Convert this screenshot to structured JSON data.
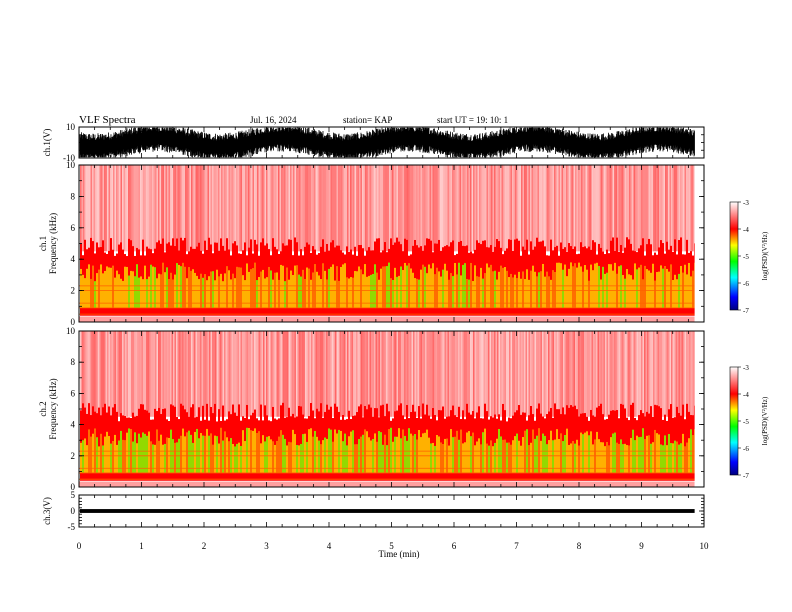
{
  "header": {
    "title": "VLF Spectra",
    "date": "Jul. 16, 2024",
    "station": "station= KAP",
    "start": "start UT =  19: 10: 1"
  },
  "colorbar": {
    "label": "log(PSD)(V²/Hz)",
    "ticks": [
      "-3",
      "-4",
      "-5",
      "-6",
      "-7"
    ],
    "colors": [
      "#000080",
      "#0000ff",
      "#00ffff",
      "#00ff00",
      "#ffff00",
      "#ff0000",
      "#ffffff"
    ]
  },
  "chart_data": [
    {
      "type": "line",
      "ylabel": "ch.1(V)",
      "ylim": [
        -10,
        10
      ],
      "yticks": [
        "10",
        "-10"
      ],
      "xlim": [
        0,
        10
      ],
      "description_values": "dense waveform filling most of range; data ends near 9.85 min",
      "x_end": 9.85
    },
    {
      "type": "heatmap",
      "ylabel": "ch.1\nFrequency (kHz)",
      "ylim": [
        0,
        10
      ],
      "yticks": [
        "0",
        "2",
        "4",
        "6",
        "8",
        "10"
      ],
      "xlim": [
        0,
        10
      ],
      "x_end": 9.85,
      "z_range": [
        -7,
        -3
      ]
    },
    {
      "type": "heatmap",
      "ylabel": "ch.2\nFrequency (kHz)",
      "ylim": [
        0,
        10
      ],
      "yticks": [
        "0",
        "2",
        "4",
        "6",
        "8",
        "10"
      ],
      "xlim": [
        0,
        10
      ],
      "x_end": 9.85,
      "z_range": [
        -7,
        -3
      ]
    },
    {
      "type": "line",
      "ylabel": "ch.3(V)",
      "ylim": [
        -5,
        5
      ],
      "yticks": [
        "5",
        "0",
        "-5"
      ],
      "xlim": [
        0,
        10
      ],
      "x_end": 9.85
    }
  ],
  "xaxis": {
    "label": "Time (min)",
    "ticks": [
      "0",
      "1",
      "2",
      "3",
      "4",
      "5",
      "6",
      "7",
      "8",
      "9",
      "10"
    ]
  }
}
